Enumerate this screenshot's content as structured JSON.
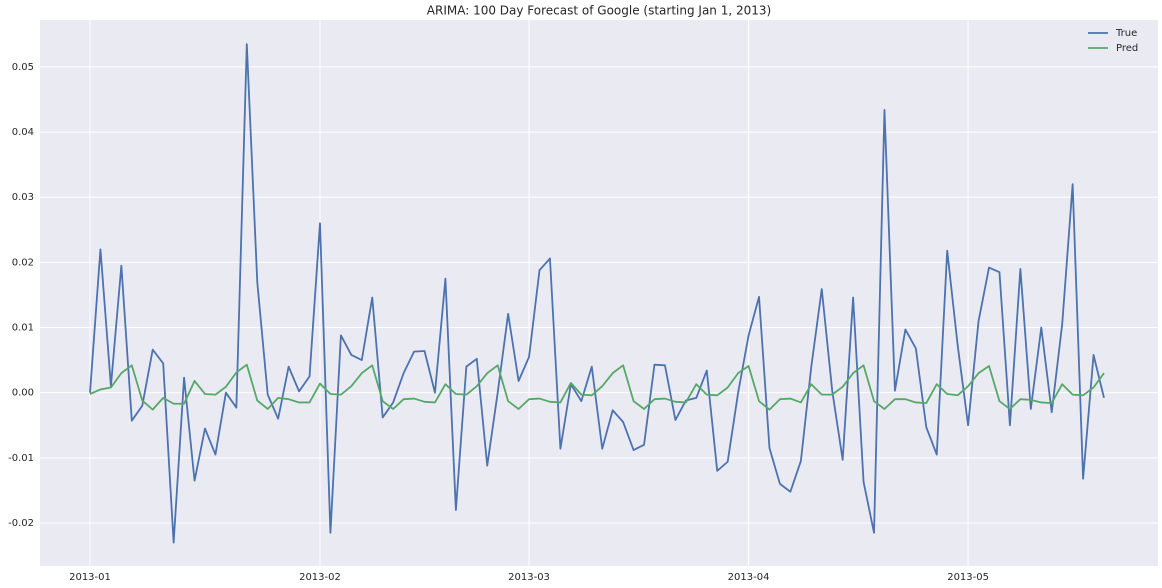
{
  "chart_data": {
    "type": "line",
    "title": "ARIMA: 100 Day Forecast of Google (starting Jan 1, 2013)",
    "categories": [
      "2013-01",
      null,
      null,
      null,
      null,
      null,
      null,
      null,
      null,
      null,
      null,
      null,
      null,
      null,
      null,
      null,
      null,
      null,
      null,
      null,
      null,
      null,
      "2013-02",
      null,
      null,
      null,
      null,
      null,
      null,
      null,
      null,
      null,
      null,
      null,
      null,
      null,
      null,
      null,
      null,
      null,
      null,
      null,
      "2013-03",
      null,
      null,
      null,
      null,
      null,
      null,
      null,
      null,
      null,
      null,
      null,
      null,
      null,
      null,
      null,
      null,
      null,
      null,
      null,
      null,
      "2013-04",
      null,
      null,
      null,
      null,
      null,
      null,
      null,
      null,
      null,
      null,
      null,
      null,
      null,
      null,
      null,
      null,
      null,
      null,
      null,
      null,
      "2013-05",
      null,
      null,
      null,
      null,
      null,
      null,
      null,
      null,
      null,
      null,
      null,
      null,
      null
    ],
    "series": [
      {
        "name": "True",
        "color": "#4c72b0",
        "values": [
          0,
          0.022,
          0.001,
          0.0195,
          -0.0043,
          -0.002,
          0.0066,
          0.0045,
          -0.023,
          0.0023,
          -0.0135,
          -0.0055,
          -0.0095,
          0,
          -0.0023,
          0.0535,
          0.017,
          -0.0003,
          -0.004,
          0.004,
          0.0002,
          0.0025,
          0.026,
          -0.0215,
          0.0088,
          0.0058,
          0.005,
          0.0146,
          -0.0038,
          -0.0015,
          0.003,
          0.0063,
          0.0064,
          0,
          0.0175,
          -0.018,
          0.004,
          0.0052,
          -0.0112,
          0,
          0.0121,
          0.0018,
          0.0055,
          0.0188,
          0.0206,
          -0.0086,
          0.0013,
          -0.0013,
          0.004,
          -0.0086,
          -0.0027,
          -0.0045,
          -0.0088,
          -0.008,
          0.0043,
          0.0042,
          -0.0042,
          -0.0012,
          -0.0008,
          0.0034,
          -0.012,
          -0.0106,
          0,
          0.0088,
          0.0147,
          -0.0085,
          -0.014,
          -0.0152,
          -0.0105,
          0.004,
          0.0159,
          0.0003,
          -0.0103,
          0.0146,
          -0.0137,
          -0.0215,
          0.0434,
          0.0003,
          0.0097,
          0.0068,
          -0.0053,
          -0.0095,
          0.0218,
          0.0073,
          -0.005,
          0.011,
          0.0192,
          0.0185,
          -0.005,
          0.019,
          -0.0025,
          0.01,
          -0.003,
          0.0105,
          0.032,
          -0.0132,
          0.0058,
          -0.0008
        ]
      },
      {
        "name": "Pred",
        "color": "#55a868",
        "values": [
          -0.0002,
          0.0005,
          0.0008,
          0.003,
          0.0042,
          -0.0012,
          -0.0026,
          -0.0008,
          -0.0017,
          -0.0017,
          0.0018,
          -0.0002,
          -0.0003,
          0.0009,
          0.0031,
          0.0043,
          -0.0012,
          -0.0025,
          -0.0008,
          -0.001,
          -0.0015,
          -0.0015,
          0.0014,
          -0.0002,
          -0.0003,
          0.001,
          0.003,
          0.0042,
          -0.0013,
          -0.0025,
          -0.001,
          -0.0009,
          -0.0014,
          -0.0015,
          0.0013,
          -0.0002,
          -0.0003,
          0.001,
          0.003,
          0.0042,
          -0.0013,
          -0.0025,
          -0.001,
          -0.0009,
          -0.0014,
          -0.0015,
          0.0015,
          -0.0003,
          -0.0004,
          0.001,
          0.003,
          0.0042,
          -0.0013,
          -0.0025,
          -0.001,
          -0.0009,
          -0.0014,
          -0.0015,
          0.0013,
          -0.0003,
          -0.0004,
          0.0008,
          0.003,
          0.0041,
          -0.0013,
          -0.0026,
          -0.001,
          -0.0009,
          -0.0015,
          0.0013,
          -0.0003,
          -0.0003,
          0.0009,
          0.003,
          0.0042,
          -0.0013,
          -0.0025,
          -0.001,
          -0.001,
          -0.0015,
          -0.0016,
          0.0013,
          -0.0002,
          -0.0004,
          0.001,
          0.003,
          0.0041,
          -0.0013,
          -0.0025,
          -0.001,
          -0.0011,
          -0.0015,
          -0.0016,
          0.0013,
          -0.0003,
          -0.0004,
          0.0008,
          0.003
        ]
      }
    ],
    "ylim": [
      -0.0266,
      0.0572
    ],
    "yticks": [
      -0.02,
      -0.01,
      {
        "value": 0,
        "label": "0.00"
      },
      0.01,
      0.02,
      0.03,
      0.04,
      0.05
    ],
    "grid": true,
    "legend": "upper right"
  }
}
